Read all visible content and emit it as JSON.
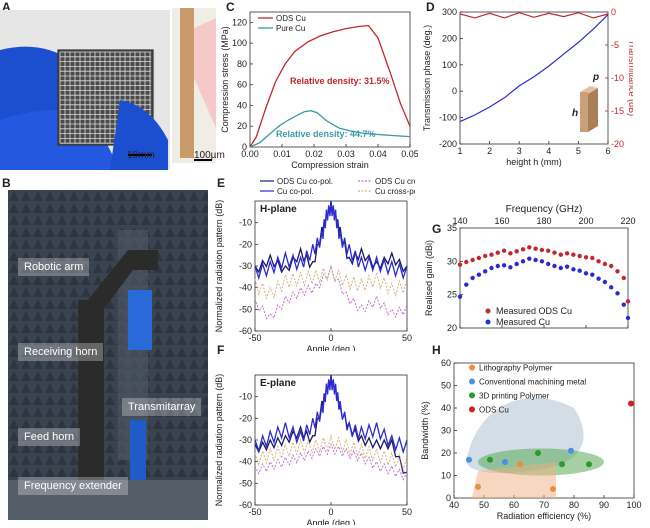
{
  "panel_labels": {
    "a": "A",
    "b": "B",
    "c": "C",
    "d": "D",
    "e": "E",
    "f": "F",
    "g": "G",
    "h": "H"
  },
  "panel_a": {
    "scale1": "10mm",
    "scale2": "100µm"
  },
  "panel_b": {
    "labels": [
      "Robotic arm",
      "Receiving horn",
      "Transmitarray",
      "Feed horn",
      "Frequency extender"
    ]
  },
  "colors": {
    "ods": "#c0282d",
    "pure": "#3a9aa8",
    "blue": "#2b2bd0",
    "navy": "#1a1a66",
    "purple": "#c070d0",
    "tan": "#d8b080",
    "bandgray": "#9bb4c7",
    "bandgreen": "#5aaa5a",
    "bandorange": "#f0b080"
  },
  "chart_data": [
    {
      "id": "C",
      "type": "line",
      "xlabel": "Compression strain",
      "ylabel": "Compression stress (MPa)",
      "xlim": [
        0,
        0.05
      ],
      "ylim": [
        0,
        130
      ],
      "xticks": [
        "0.00",
        "0.01",
        "0.02",
        "0.03",
        "0.04",
        "0.05"
      ],
      "yticks": [
        "0",
        "20",
        "40",
        "60",
        "80",
        "100",
        "120"
      ],
      "series": [
        {
          "name": "ODS Cu",
          "x": [
            0,
            0.002,
            0.005,
            0.008,
            0.011,
            0.014,
            0.018,
            0.022,
            0.026,
            0.03,
            0.034,
            0.037,
            0.04,
            0.044,
            0.047,
            0.05
          ],
          "y": [
            0,
            10,
            38,
            63,
            80,
            92,
            101,
            107,
            111,
            114,
            116,
            117,
            105,
            70,
            42,
            20
          ]
        },
        {
          "name": "Pure Cu",
          "x": [
            0,
            0.003,
            0.006,
            0.009,
            0.012,
            0.015,
            0.017,
            0.019,
            0.021,
            0.024,
            0.028,
            0.032,
            0.036,
            0.04,
            0.045,
            0.05
          ],
          "y": [
            0,
            4,
            12,
            20,
            26,
            31,
            34,
            35,
            33,
            25,
            18,
            15,
            13,
            12,
            11,
            10
          ]
        }
      ],
      "annotations": [
        "Relative density: 31.5%",
        "Relative density: 44.7%"
      ]
    },
    {
      "id": "D",
      "type": "line",
      "xlabel": "height h (mm)",
      "ylabel": "Transmission phase (deg.)",
      "ylabel_right": "Transmittance (dB)",
      "xlim": [
        1,
        6
      ],
      "ylim": [
        -200,
        300
      ],
      "ylim_right": [
        -20,
        0
      ],
      "xticks": [
        "1",
        "2",
        "3",
        "4",
        "5",
        "6"
      ],
      "yticks": [
        "-200",
        "-100",
        "0",
        "100",
        "200",
        "300"
      ],
      "yticks_right": [
        "-20",
        "-15",
        "-10",
        "-5",
        "0"
      ],
      "series": [
        {
          "name": "Transmission phase",
          "axis": "left",
          "x": [
            1,
            1.5,
            2,
            2.5,
            3,
            3.5,
            4,
            4.5,
            5,
            5.5,
            6
          ],
          "y": [
            -115,
            -90,
            -60,
            -25,
            20,
            55,
            95,
            140,
            185,
            235,
            290
          ]
        },
        {
          "name": "Transmittance",
          "axis": "right",
          "x": [
            1,
            1.5,
            2,
            2.5,
            3,
            3.5,
            4,
            4.5,
            5,
            5.5,
            6
          ],
          "y": [
            -0.3,
            -0.9,
            -0.2,
            -0.9,
            -0.1,
            -0.8,
            -0.2,
            -0.7,
            -0.1,
            -0.9,
            -0.3
          ]
        }
      ],
      "inset_labels": [
        "p",
        "h"
      ]
    },
    {
      "id": "E",
      "type": "line",
      "subtitle": "H-plane",
      "xlabel": "Angle (deg.)",
      "ylabel": "Normalized radiation pattern (dB)",
      "xlim": [
        -50,
        50
      ],
      "ylim": [
        -60,
        0
      ],
      "xticks": [
        "-50",
        "0",
        "50"
      ],
      "yticks": [
        "-60",
        "-50",
        "-40",
        "-30",
        "-20",
        "-10"
      ],
      "series": [
        {
          "name": "ODS Cu co-pol.",
          "x": [
            -50,
            -40,
            -30,
            -20,
            -12,
            -6,
            -3,
            0,
            3,
            6,
            12,
            20,
            30,
            40,
            50
          ],
          "y": [
            -30,
            -25,
            -30,
            -22,
            -28,
            -12,
            -5,
            0,
            -5,
            -12,
            -26,
            -22,
            -28,
            -24,
            -30
          ]
        },
        {
          "name": "Cu co-pol.",
          "x": [
            -50,
            -40,
            -30,
            -20,
            -12,
            -6,
            -3,
            0,
            3,
            6,
            12,
            20,
            30,
            40,
            50
          ],
          "y": [
            -30,
            -28,
            -24,
            -26,
            -20,
            -14,
            -4,
            0,
            -4,
            -14,
            -20,
            -26,
            -26,
            -28,
            -30
          ]
        },
        {
          "name": "ODS Cu cross-pol",
          "x": [
            -50,
            -40,
            -30,
            -20,
            -10,
            0,
            10,
            20,
            30,
            40,
            50
          ],
          "y": [
            -45,
            -52,
            -44,
            -40,
            -38,
            -30,
            -42,
            -48,
            -44,
            -50,
            -48
          ]
        },
        {
          "name": "Cu cross-pol.",
          "x": [
            -50,
            -40,
            -30,
            -20,
            -10,
            0,
            10,
            20,
            30,
            40,
            50
          ],
          "y": [
            -36,
            -40,
            -34,
            -33,
            -32,
            -30,
            -34,
            -36,
            -33,
            -38,
            -36
          ]
        }
      ]
    },
    {
      "id": "F",
      "type": "line",
      "subtitle": "E-plane",
      "xlabel": "Angle (deg.)",
      "ylabel": "Normalized radiation pattern (dB)",
      "xlim": [
        -50,
        50
      ],
      "ylim": [
        -60,
        0
      ],
      "xticks": [
        "-50",
        "0",
        "50"
      ],
      "yticks": [
        "-60",
        "-50",
        "-40",
        "-30",
        "-20",
        "-10"
      ],
      "series": [
        {
          "name": "ODS Cu co-pol.",
          "x": [
            -50,
            -40,
            -30,
            -20,
            -12,
            -6,
            -3,
            0,
            3,
            6,
            12,
            20,
            30,
            40,
            50
          ],
          "y": [
            -32,
            -30,
            -28,
            -24,
            -28,
            -12,
            -5,
            0,
            -5,
            -14,
            -22,
            -28,
            -30,
            -30,
            -45
          ]
        },
        {
          "name": "Cu co-pol.",
          "x": [
            -50,
            -40,
            -30,
            -20,
            -12,
            -6,
            -3,
            0,
            3,
            6,
            12,
            20,
            30,
            40,
            50
          ],
          "y": [
            -30,
            -26,
            -22,
            -26,
            -20,
            -14,
            -4,
            0,
            -4,
            -12,
            -22,
            -24,
            -22,
            -28,
            -30
          ]
        },
        {
          "name": "ODS Cu cross-pol",
          "x": [
            -50,
            -40,
            -30,
            -20,
            -10,
            0,
            10,
            20,
            30,
            40,
            50
          ],
          "y": [
            -42,
            -40,
            -38,
            -36,
            -34,
            -32,
            -34,
            -36,
            -40,
            -42,
            -45
          ]
        },
        {
          "name": "Cu cross-pol.",
          "x": [
            -50,
            -40,
            -30,
            -20,
            -10,
            0,
            10,
            20,
            30,
            40,
            50
          ],
          "y": [
            -36,
            -34,
            -32,
            -30,
            -30,
            -28,
            -30,
            -32,
            -34,
            -36,
            -38
          ]
        }
      ]
    },
    {
      "id": "G",
      "type": "scatter",
      "xlabel": "Frequency (GHz)",
      "ylabel": "Realised gain (dBi)",
      "xlim": [
        140,
        220
      ],
      "ylim": [
        20,
        35
      ],
      "xticks": [
        "140",
        "160",
        "180",
        "200",
        "220"
      ],
      "yticks": [
        "20",
        "25",
        "30",
        "35"
      ],
      "series": [
        {
          "name": "Measured ODS Cu",
          "x": [
            140,
            143,
            146,
            149,
            152,
            155,
            158,
            161,
            164,
            167,
            170,
            173,
            176,
            179,
            182,
            185,
            188,
            191,
            194,
            197,
            200,
            203,
            206,
            209,
            212,
            215,
            218,
            220
          ],
          "y": [
            29.5,
            29.9,
            30.2,
            30.5,
            30.8,
            31.0,
            31.3,
            31.6,
            31.2,
            31.5,
            31.8,
            32.1,
            31.9,
            31.7,
            31.6,
            31.3,
            31.0,
            31.2,
            31.0,
            30.8,
            30.6,
            30.5,
            30.0,
            29.6,
            29.3,
            28.5,
            27.5,
            24.0
          ]
        },
        {
          "name": "Measured Cu",
          "x": [
            140,
            143,
            146,
            149,
            152,
            155,
            158,
            161,
            164,
            167,
            170,
            173,
            176,
            179,
            182,
            185,
            188,
            191,
            194,
            197,
            200,
            203,
            206,
            209,
            212,
            215,
            218,
            220
          ],
          "y": [
            24.7,
            26.5,
            27.5,
            28.0,
            28.5,
            29.0,
            29.3,
            29.4,
            29.1,
            29.6,
            30.0,
            30.4,
            30.2,
            30.0,
            29.6,
            29.3,
            29.0,
            29.2,
            28.8,
            28.6,
            28.2,
            28.0,
            27.4,
            26.9,
            26.1,
            25.2,
            23.5,
            21.5
          ]
        }
      ]
    },
    {
      "id": "H",
      "type": "scatter",
      "xlabel": "Radiation efficiency (%)",
      "ylabel": "Bandwidth (%)",
      "xlim": [
        40,
        100
      ],
      "ylim": [
        0,
        60
      ],
      "xticks": [
        "40",
        "50",
        "60",
        "70",
        "80",
        "90",
        "100"
      ],
      "yticks": [
        "0",
        "10",
        "20",
        "30",
        "40",
        "50",
        "60"
      ],
      "series": [
        {
          "name": "Lithography Polymer",
          "x": [
            48,
            62,
            73
          ],
          "y": [
            5,
            15,
            4
          ]
        },
        {
          "name": "Conventional machining metal",
          "x": [
            45,
            57,
            79
          ],
          "y": [
            17,
            16,
            21
          ]
        },
        {
          "name": "3D printing Polymer",
          "x": [
            52,
            68,
            76,
            85
          ],
          "y": [
            17,
            20,
            15,
            15
          ]
        },
        {
          "name": "ODS Cu",
          "x": [
            99
          ],
          "y": [
            42
          ]
        }
      ]
    }
  ]
}
